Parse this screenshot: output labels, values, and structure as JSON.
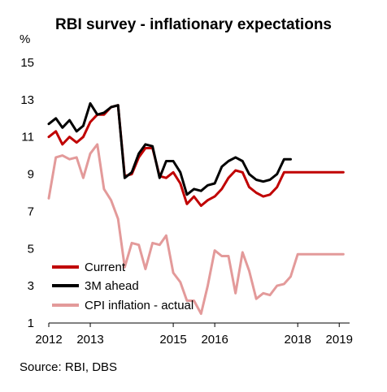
{
  "chart_data": {
    "type": "line",
    "title": "RBI survey - inflationary expectations",
    "unit_label": "%",
    "ylim": [
      1,
      15
    ],
    "y_ticks": [
      1,
      3,
      5,
      7,
      9,
      11,
      13,
      15
    ],
    "xlim": [
      2012,
      2019.25
    ],
    "x_ticks": [
      2012,
      2013,
      2015,
      2016,
      2018,
      2019
    ],
    "x_tick_labels": [
      "2012",
      "2013",
      "2015",
      "2016",
      "2018",
      "2019"
    ],
    "grid": false,
    "legend_position": "bottom-left",
    "source": "Source: RBI, DBS",
    "series": [
      {
        "name": "Current",
        "color": "#c00000",
        "x": [
          2012.0,
          2012.17,
          2012.33,
          2012.5,
          2012.67,
          2012.83,
          2013.0,
          2013.17,
          2013.33,
          2013.5,
          2013.67,
          2013.83,
          2014.0,
          2014.17,
          2014.33,
          2014.5,
          2014.67,
          2014.83,
          2015.0,
          2015.17,
          2015.33,
          2015.5,
          2015.67,
          2015.83,
          2016.0,
          2016.17,
          2016.33,
          2016.5,
          2016.67,
          2016.83,
          2017.0,
          2017.17,
          2017.33,
          2017.5,
          2017.67,
          2017.83,
          2018.0,
          2018.17,
          2018.33,
          2018.5,
          2018.67,
          2018.83,
          2019.0,
          2019.1
        ],
        "values": [
          11.0,
          11.3,
          10.6,
          11.0,
          10.7,
          11.0,
          11.8,
          12.2,
          12.2,
          12.6,
          12.7,
          8.9,
          9.0,
          9.9,
          10.4,
          10.4,
          8.9,
          8.8,
          9.1,
          8.5,
          7.4,
          7.8,
          7.3,
          7.6,
          7.8,
          8.2,
          8.8,
          9.2,
          9.1,
          8.3,
          8.0,
          7.8,
          7.9,
          8.3,
          9.1,
          9.1,
          9.1,
          9.1,
          9.1,
          9.1,
          9.1,
          9.1,
          9.1,
          9.1
        ]
      },
      {
        "name": "3M ahead",
        "color": "#000000",
        "x": [
          2012.0,
          2012.17,
          2012.33,
          2012.5,
          2012.67,
          2012.83,
          2013.0,
          2013.17,
          2013.33,
          2013.5,
          2013.67,
          2013.83,
          2014.0,
          2014.17,
          2014.33,
          2014.5,
          2014.67,
          2014.83,
          2015.0,
          2015.17,
          2015.33,
          2015.5,
          2015.67,
          2015.83,
          2016.0,
          2016.17,
          2016.33,
          2016.5,
          2016.67,
          2016.83,
          2017.0,
          2017.17,
          2017.33,
          2017.5,
          2017.67,
          2017.83
        ],
        "values": [
          11.7,
          12.0,
          11.5,
          11.9,
          11.3,
          11.6,
          12.8,
          12.2,
          12.3,
          12.6,
          12.7,
          8.8,
          9.1,
          10.1,
          10.6,
          10.5,
          8.8,
          9.7,
          9.7,
          9.1,
          7.9,
          8.2,
          8.1,
          8.4,
          8.5,
          9.4,
          9.7,
          9.9,
          9.7,
          9.0,
          8.7,
          8.6,
          8.7,
          9.0,
          9.8,
          9.8
        ]
      },
      {
        "name": "CPI inflation - actual",
        "color": "#e39a9a",
        "x": [
          2012.0,
          2012.17,
          2012.33,
          2012.5,
          2012.67,
          2012.83,
          2013.0,
          2013.17,
          2013.33,
          2013.5,
          2013.67,
          2013.83,
          2014.0,
          2014.17,
          2014.33,
          2014.5,
          2014.67,
          2014.83,
          2015.0,
          2015.17,
          2015.33,
          2015.5,
          2015.67,
          2015.83,
          2016.0,
          2016.17,
          2016.33,
          2016.5,
          2016.67,
          2016.83,
          2017.0,
          2017.17,
          2017.33,
          2017.5,
          2017.67,
          2017.83,
          2018.0,
          2018.17,
          2018.33,
          2018.5,
          2018.67,
          2018.83,
          2019.0,
          2019.1
        ],
        "values": [
          7.7,
          9.9,
          10.0,
          9.8,
          9.9,
          8.8,
          10.1,
          10.6,
          8.2,
          7.6,
          6.6,
          4.0,
          5.3,
          5.2,
          3.9,
          5.3,
          5.2,
          5.7,
          3.7,
          3.2,
          2.2,
          2.2,
          1.5,
          3.0,
          4.9,
          4.6,
          4.6,
          2.6,
          4.8,
          3.8,
          2.3,
          2.6,
          2.5,
          3.0,
          3.1,
          3.5,
          4.7,
          4.7,
          4.7,
          4.7,
          4.7,
          4.7,
          4.7,
          4.7
        ]
      }
    ]
  }
}
